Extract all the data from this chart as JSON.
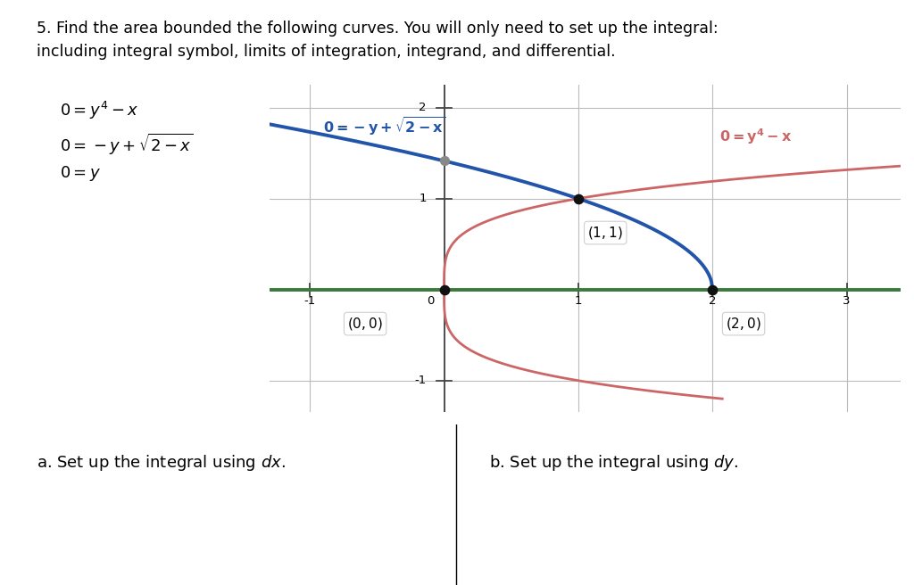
{
  "title_line1": "5. Find the area bounded the following curves. You will only need to set up the integral:",
  "title_line2": "including integral symbol, limits of integration, integrand, and differential.",
  "bg_color": "#ffffff",
  "blue_color": "#2255AA",
  "red_color": "#CC6666",
  "green_color": "#3a7a3a",
  "dot_color": "#111111",
  "gray_dot_color": "#888888",
  "xlim": [
    -1.3,
    3.4
  ],
  "ylim": [
    -1.35,
    2.25
  ],
  "xticks": [
    -1,
    0,
    1,
    2,
    3
  ],
  "yticks": [
    -1,
    0,
    1,
    2
  ],
  "grid_color": "#bbbbbb",
  "axis_color": "#444444",
  "sub_a": "a. Set up the integral using ",
  "sub_b": "b. Set up the integral using "
}
